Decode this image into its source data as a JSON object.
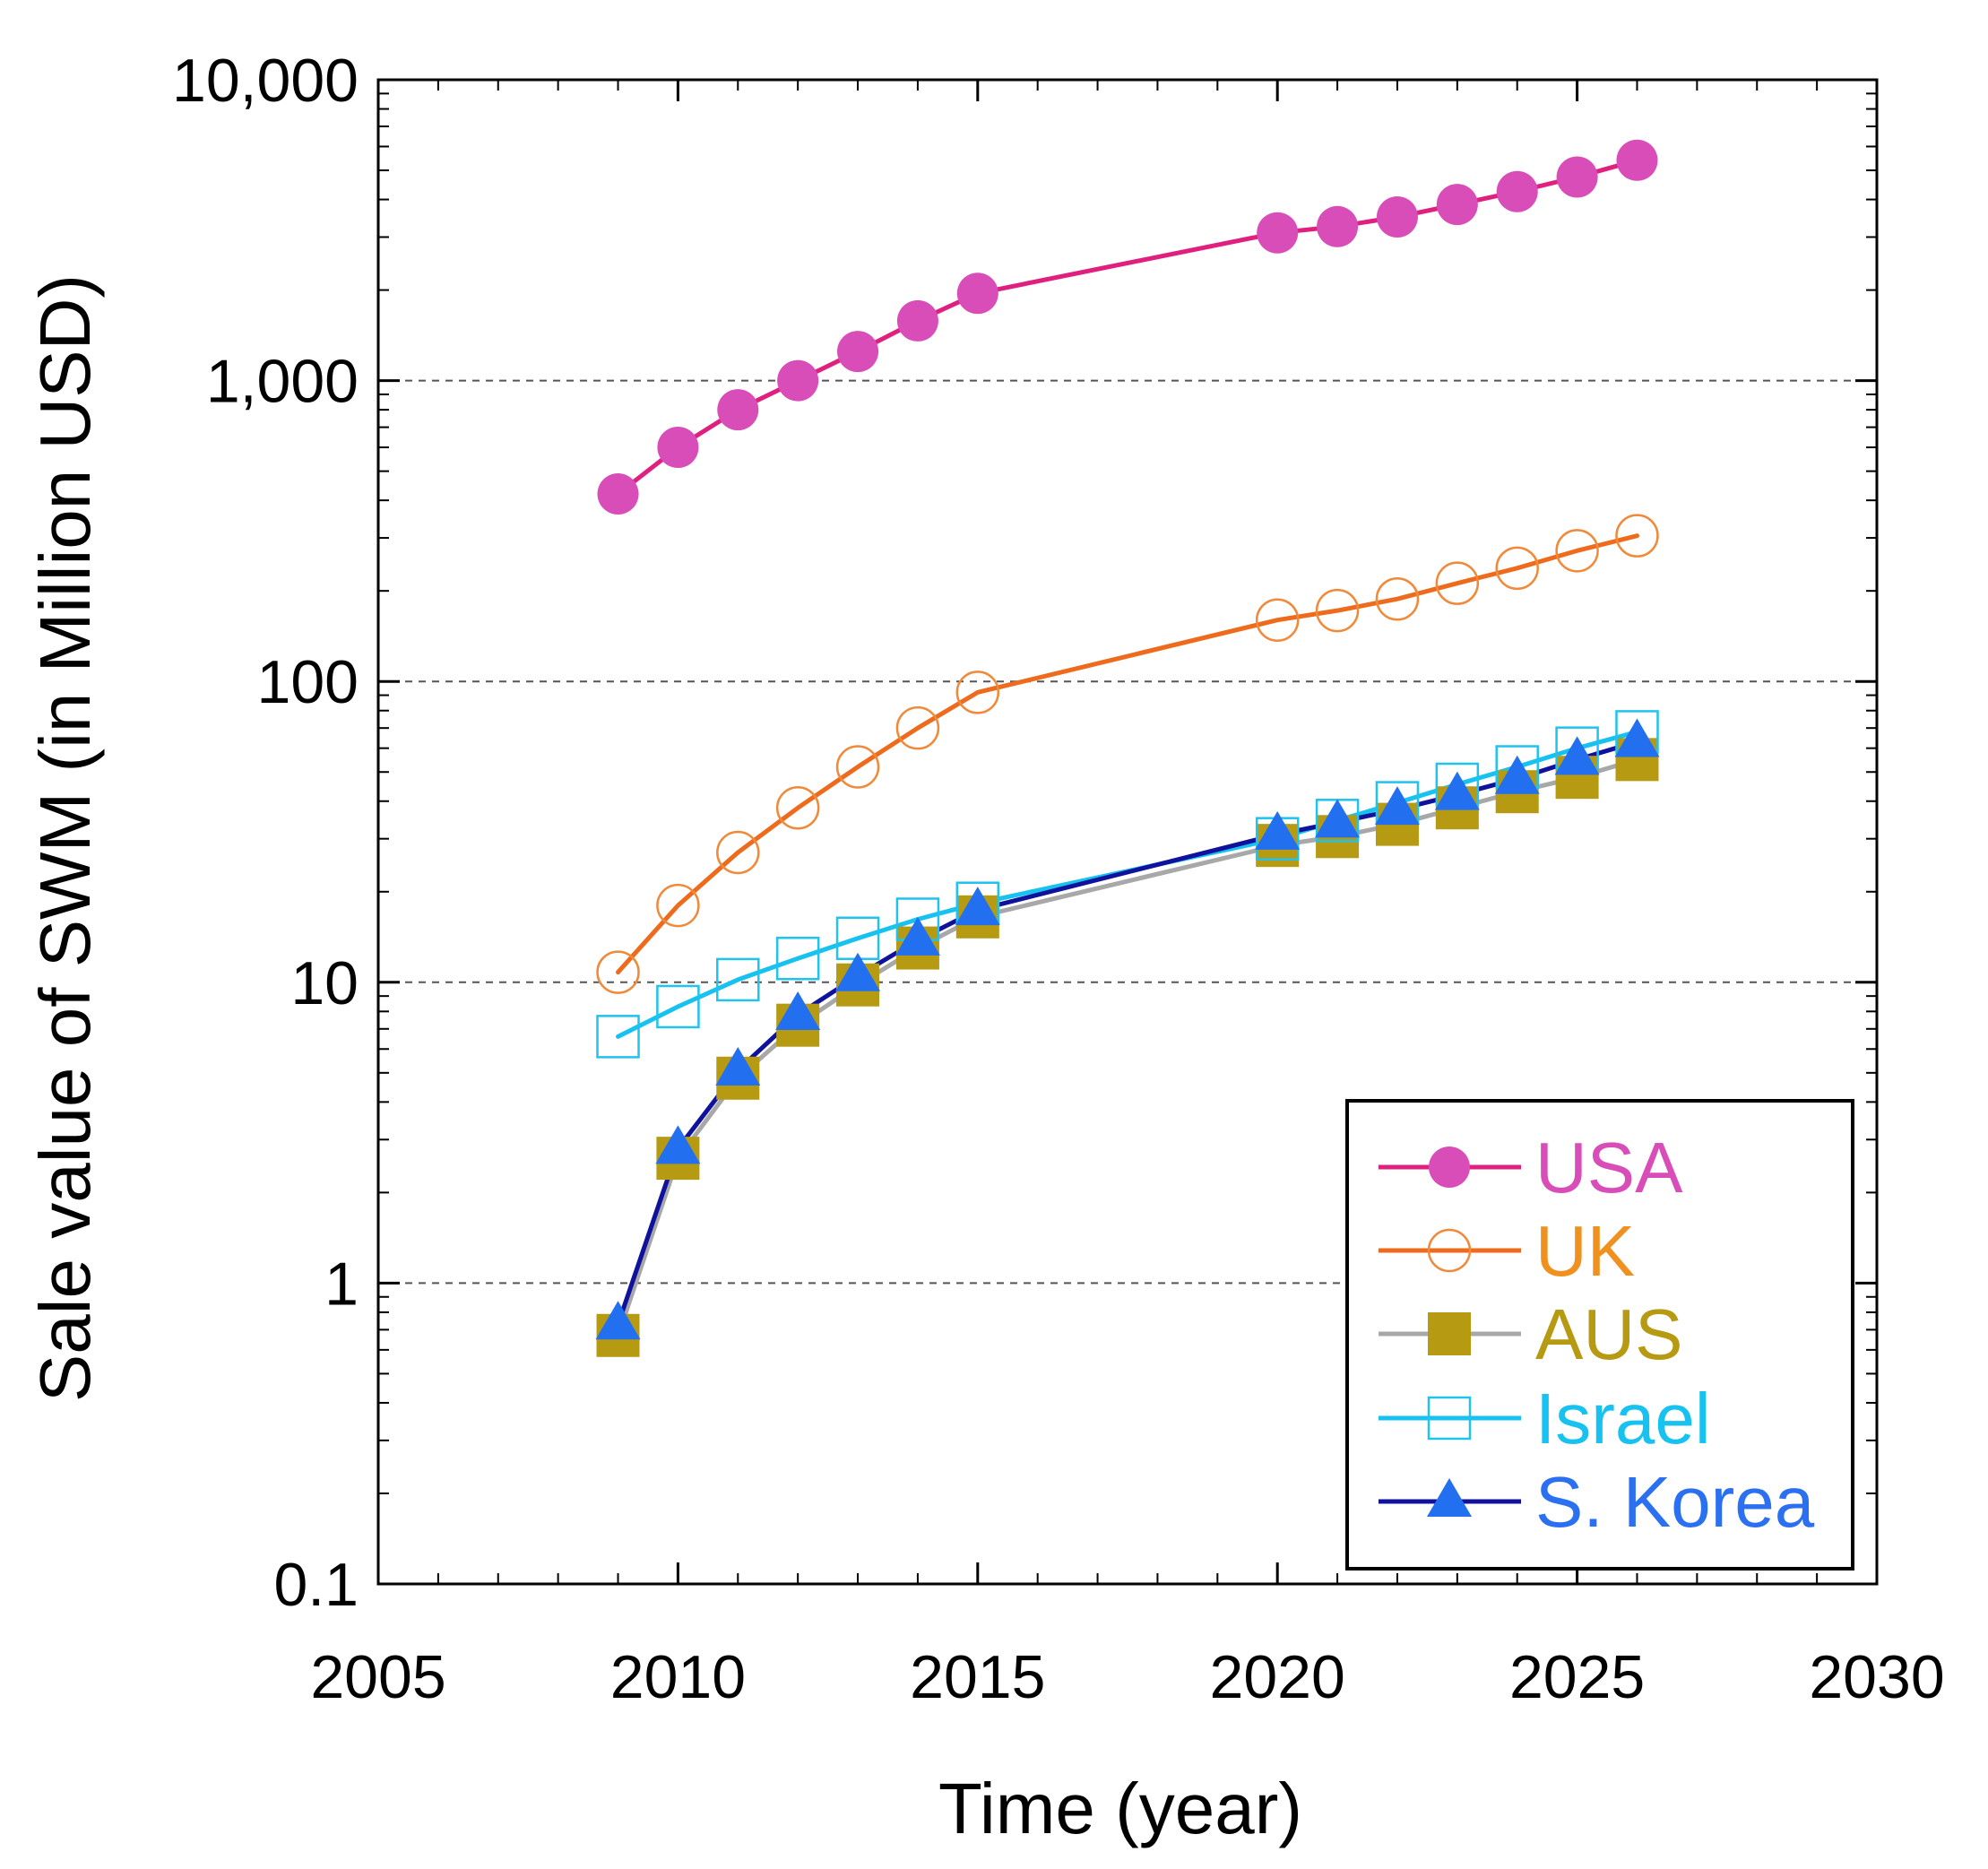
{
  "chart_data": {
    "type": "line",
    "x_scale": "linear",
    "y_scale": "log",
    "xlabel": "Time (year)",
    "ylabel": "Sale value of SWM (in Million USD)",
    "xlim": [
      2005,
      2030
    ],
    "ylim": [
      0.1,
      10000
    ],
    "x_ticks": [
      2005,
      2010,
      2015,
      2020,
      2025,
      2030
    ],
    "x_tick_labels": [
      "2005",
      "2010",
      "2015",
      "2020",
      "2025",
      "2030"
    ],
    "y_ticks": [
      0.1,
      1,
      10,
      100,
      1000,
      10000
    ],
    "y_tick_labels": [
      "0.1",
      "1",
      "10",
      "100",
      "1,000",
      "10,000"
    ],
    "grid": "horizontal dashed",
    "legend_position": "bottom-right",
    "series": [
      {
        "name": "USA",
        "color": "#e0207e",
        "marker_color": "#d94db8",
        "label_color": "#d94db8",
        "marker": "filled-circle",
        "x": [
          2009,
          2010,
          2011,
          2012,
          2013,
          2014,
          2015,
          2020,
          2021,
          2022,
          2023,
          2024,
          2025,
          2026
        ],
        "values": [
          420,
          600,
          800,
          1000,
          1250,
          1580,
          1950,
          3100,
          3250,
          3500,
          3850,
          4250,
          4750,
          5400
        ]
      },
      {
        "name": "UK",
        "color": "#ee6a1c",
        "marker_color": "#f08a3a",
        "label_color": "#f0901e",
        "marker": "open-circle",
        "x": [
          2009,
          2010,
          2011,
          2012,
          2013,
          2014,
          2015,
          2020,
          2021,
          2022,
          2023,
          2024,
          2025,
          2026
        ],
        "values": [
          10.8,
          18,
          27,
          38,
          52,
          70,
          92,
          160,
          172,
          188,
          212,
          238,
          272,
          305
        ]
      },
      {
        "name": "AUS",
        "color": "#a8a8a8",
        "marker_color": "#b69a12",
        "label_color": "#b69a12",
        "marker": "filled-square",
        "x": [
          2009,
          2010,
          2011,
          2012,
          2013,
          2014,
          2015,
          2020,
          2021,
          2022,
          2023,
          2024,
          2025,
          2026
        ],
        "values": [
          0.67,
          2.6,
          4.8,
          7.2,
          9.8,
          13,
          16.5,
          28.5,
          30.5,
          33.5,
          38,
          43,
          48,
          55
        ]
      },
      {
        "name": "Israel",
        "color": "#18c2f0",
        "marker_color": "#20c2ee",
        "label_color": "#18c2f0",
        "marker": "open-square",
        "x": [
          2009,
          2010,
          2011,
          2012,
          2013,
          2014,
          2015,
          2020,
          2021,
          2022,
          2023,
          2024,
          2025,
          2026
        ],
        "values": [
          6.6,
          8.3,
          10.2,
          12,
          14,
          16.2,
          18.3,
          30,
          34.5,
          39.5,
          45.5,
          52,
          60,
          68
        ]
      },
      {
        "name": "S. Korea",
        "color": "#10129c",
        "marker_color": "#2270f0",
        "label_color": "#2a70f0",
        "marker": "filled-triangle",
        "x": [
          2009,
          2010,
          2011,
          2012,
          2013,
          2014,
          2015,
          2020,
          2021,
          2022,
          2023,
          2024,
          2025,
          2026
        ],
        "values": [
          0.73,
          2.8,
          5.1,
          7.8,
          10.5,
          13.8,
          17.4,
          31,
          34,
          37.5,
          42,
          47.5,
          55,
          63
        ]
      }
    ]
  }
}
